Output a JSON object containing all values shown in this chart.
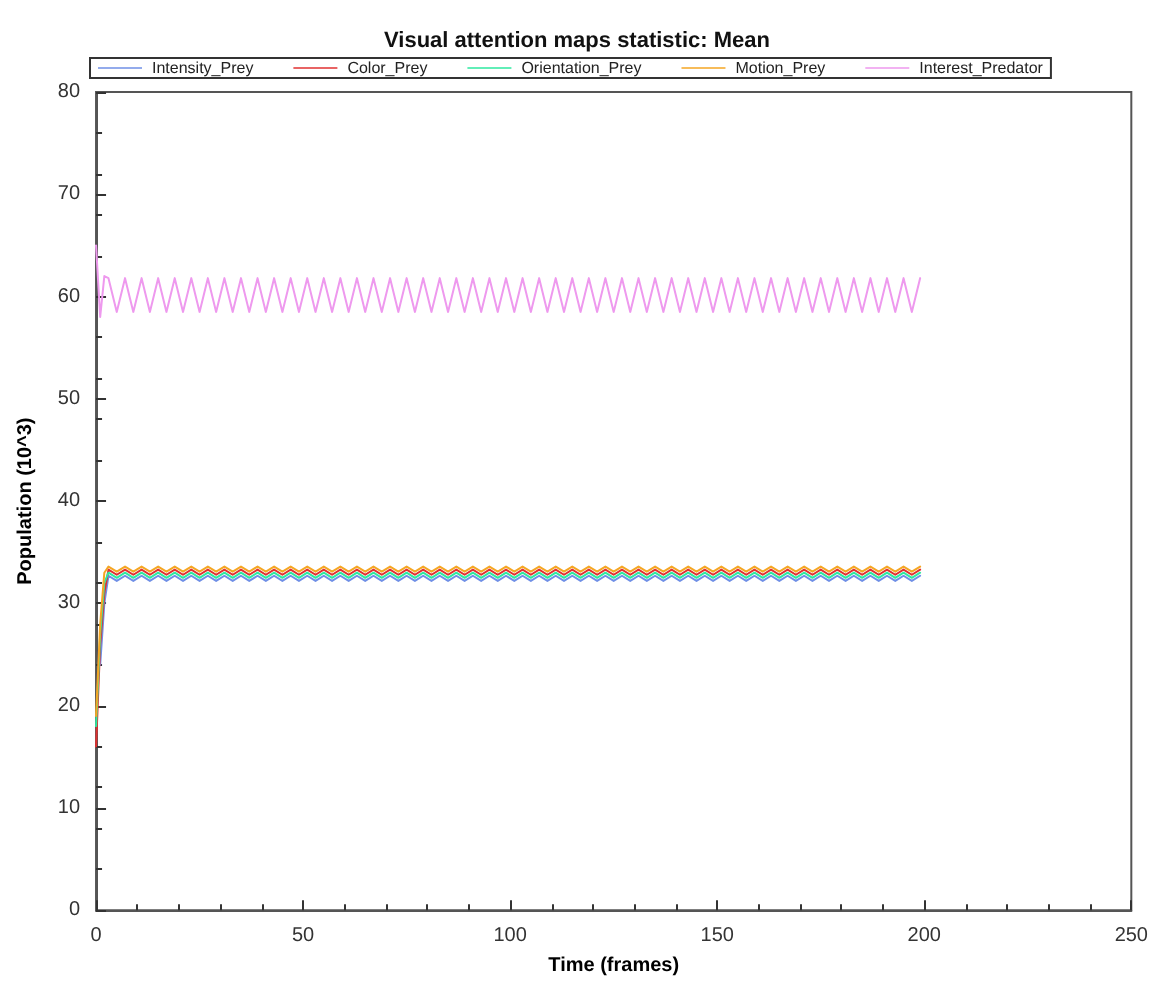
{
  "chart_data": {
    "type": "line",
    "title": "Visual attention maps statistic: Mean",
    "xlabel": "Time (frames)",
    "ylabel": "Population (10^3)",
    "x": [
      0,
      1,
      2,
      3,
      5,
      7,
      9,
      11,
      13,
      15,
      17,
      19,
      21,
      23,
      25,
      27,
      29,
      31,
      33,
      35,
      37,
      39,
      41,
      43,
      45,
      47,
      49,
      51,
      53,
      55,
      57,
      59,
      61,
      63,
      65,
      67,
      69,
      71,
      73,
      75,
      77,
      79,
      81,
      83,
      85,
      87,
      89,
      91,
      93,
      95,
      97,
      99,
      101,
      103,
      105,
      107,
      109,
      111,
      113,
      115,
      117,
      119,
      121,
      123,
      125,
      127,
      129,
      131,
      133,
      135,
      137,
      139,
      141,
      143,
      145,
      147,
      149,
      151,
      153,
      155,
      157,
      159,
      161,
      163,
      165,
      167,
      169,
      171,
      173,
      175,
      177,
      179,
      181,
      183,
      185,
      187,
      189,
      191,
      193,
      195,
      197,
      199
    ],
    "xlim": [
      0,
      250
    ],
    "xticks": [
      0,
      50,
      100,
      150,
      200,
      250
    ],
    "ylim": [
      0,
      80
    ],
    "yticks": [
      0,
      10,
      20,
      30,
      40,
      50,
      60,
      70,
      80
    ],
    "grid": false,
    "legend": "top",
    "marker": "none",
    "line_style": "solid",
    "series": [
      {
        "name": "Intensity_Prey",
        "color": "#6f8fe6",
        "values": [
          null,
          24,
          30,
          32.7,
          32.2,
          32.7,
          32.2,
          32.7,
          32.2,
          32.7,
          32.2,
          32.7,
          32.2,
          32.7,
          32.2,
          32.7,
          32.2,
          32.7,
          32.2,
          32.7,
          32.2,
          32.7,
          32.2,
          32.7,
          32.2,
          32.7,
          32.2,
          32.7,
          32.2,
          32.7,
          32.2,
          32.7,
          32.2,
          32.7,
          32.2,
          32.7,
          32.2,
          32.7,
          32.2,
          32.7,
          32.2,
          32.7,
          32.2,
          32.7,
          32.2,
          32.7,
          32.2,
          32.7,
          32.2,
          32.7,
          32.2,
          32.7,
          32.2,
          32.7,
          32.2,
          32.7,
          32.2,
          32.7,
          32.2,
          32.7,
          32.2,
          32.7,
          32.2,
          32.7,
          32.2,
          32.7,
          32.2,
          32.7,
          32.2,
          32.7,
          32.2,
          32.7,
          32.2,
          32.7,
          32.2,
          32.7,
          32.2,
          32.7,
          32.2,
          32.7,
          32.2,
          32.7,
          32.2,
          32.7,
          32.2,
          32.7,
          32.2,
          32.7,
          32.2,
          32.7,
          32.2,
          32.7,
          32.2,
          32.7,
          32.2,
          32.7,
          32.2,
          32.7,
          32.2,
          32.7,
          32.2,
          32.7
        ]
      },
      {
        "name": "Color_Prey",
        "color": "#e03030",
        "values": [
          16,
          26,
          31,
          33.3,
          32.8,
          33.3,
          32.8,
          33.3,
          32.8,
          33.3,
          32.8,
          33.3,
          32.8,
          33.3,
          32.8,
          33.3,
          32.8,
          33.3,
          32.8,
          33.3,
          32.8,
          33.3,
          32.8,
          33.3,
          32.8,
          33.3,
          32.8,
          33.3,
          32.8,
          33.3,
          32.8,
          33.3,
          32.8,
          33.3,
          32.8,
          33.3,
          32.8,
          33.3,
          32.8,
          33.3,
          32.8,
          33.3,
          32.8,
          33.3,
          32.8,
          33.3,
          32.8,
          33.3,
          32.8,
          33.3,
          32.8,
          33.3,
          32.8,
          33.3,
          32.8,
          33.3,
          32.8,
          33.3,
          32.8,
          33.3,
          32.8,
          33.3,
          32.8,
          33.3,
          32.8,
          33.3,
          32.8,
          33.3,
          32.8,
          33.3,
          32.8,
          33.3,
          32.8,
          33.3,
          32.8,
          33.3,
          32.8,
          33.3,
          32.8,
          33.3,
          32.8,
          33.3,
          32.8,
          33.3,
          32.8,
          33.3,
          32.8,
          33.3,
          32.8,
          33.3,
          32.8,
          33.3,
          32.8,
          33.3,
          32.8,
          33.3,
          32.8,
          33.3,
          32.8,
          33.3,
          32.8,
          33.3
        ]
      },
      {
        "name": "Orientation_Prey",
        "color": "#2ee8a0",
        "values": [
          18,
          27,
          32,
          33,
          32.5,
          33,
          32.5,
          33,
          32.5,
          33,
          32.5,
          33,
          32.5,
          33,
          32.5,
          33,
          32.5,
          33,
          32.5,
          33,
          32.5,
          33,
          32.5,
          33,
          32.5,
          33,
          32.5,
          33,
          32.5,
          33,
          32.5,
          33,
          32.5,
          33,
          32.5,
          33,
          32.5,
          33,
          32.5,
          33,
          32.5,
          33,
          32.5,
          33,
          32.5,
          33,
          32.5,
          33,
          32.5,
          33,
          32.5,
          33,
          32.5,
          33,
          32.5,
          33,
          32.5,
          33,
          32.5,
          33,
          32.5,
          33,
          32.5,
          33,
          32.5,
          33,
          32.5,
          33,
          32.5,
          33,
          32.5,
          33,
          32.5,
          33,
          32.5,
          33,
          32.5,
          33,
          32.5,
          33,
          32.5,
          33,
          32.5,
          33,
          32.5,
          33,
          32.5,
          33,
          32.5,
          33,
          32.5,
          33,
          32.5,
          33,
          32.5,
          33,
          32.5,
          33,
          32.5,
          33,
          32.5,
          33
        ]
      },
      {
        "name": "Motion_Prey",
        "color": "#f5a623",
        "values": [
          19,
          28,
          33,
          33.6,
          33.1,
          33.6,
          33.1,
          33.6,
          33.1,
          33.6,
          33.1,
          33.6,
          33.1,
          33.6,
          33.1,
          33.6,
          33.1,
          33.6,
          33.1,
          33.6,
          33.1,
          33.6,
          33.1,
          33.6,
          33.1,
          33.6,
          33.1,
          33.6,
          33.1,
          33.6,
          33.1,
          33.6,
          33.1,
          33.6,
          33.1,
          33.6,
          33.1,
          33.6,
          33.1,
          33.6,
          33.1,
          33.6,
          33.1,
          33.6,
          33.1,
          33.6,
          33.1,
          33.6,
          33.1,
          33.6,
          33.1,
          33.6,
          33.1,
          33.6,
          33.1,
          33.6,
          33.1,
          33.6,
          33.1,
          33.6,
          33.1,
          33.6,
          33.1,
          33.6,
          33.1,
          33.6,
          33.1,
          33.6,
          33.1,
          33.6,
          33.1,
          33.6,
          33.1,
          33.6,
          33.1,
          33.6,
          33.1,
          33.6,
          33.1,
          33.6,
          33.1,
          33.6,
          33.1,
          33.6,
          33.1,
          33.6,
          33.1,
          33.6,
          33.1,
          33.6,
          33.1,
          33.6,
          33.1,
          33.6,
          33.1,
          33.6,
          33.1,
          33.6,
          33.1,
          33.6,
          33.1,
          33.6
        ]
      },
      {
        "name": "Interest_Predator",
        "color": "#ee99ee",
        "values": [
          65,
          58,
          62,
          61.8,
          58.5,
          61.8,
          58.5,
          61.8,
          58.5,
          61.8,
          58.5,
          61.8,
          58.5,
          61.8,
          58.5,
          61.8,
          58.5,
          61.8,
          58.5,
          61.8,
          58.5,
          61.8,
          58.5,
          61.8,
          58.5,
          61.8,
          58.5,
          61.8,
          58.5,
          61.8,
          58.5,
          61.8,
          58.5,
          61.8,
          58.5,
          61.8,
          58.5,
          61.8,
          58.5,
          61.8,
          58.5,
          61.8,
          58.5,
          61.8,
          58.5,
          61.8,
          58.5,
          61.8,
          58.5,
          61.8,
          58.5,
          61.8,
          58.5,
          61.8,
          58.5,
          61.8,
          58.5,
          61.8,
          58.5,
          61.8,
          58.5,
          61.8,
          58.5,
          61.8,
          58.5,
          61.8,
          58.5,
          61.8,
          58.5,
          61.8,
          58.5,
          61.8,
          58.5,
          61.8,
          58.5,
          61.8,
          58.5,
          61.8,
          58.5,
          61.8,
          58.5,
          61.8,
          58.5,
          61.8,
          58.5,
          61.8,
          58.5,
          61.8,
          58.5,
          61.8,
          58.5,
          61.8,
          58.5,
          61.8,
          58.5,
          61.8,
          58.5,
          61.8,
          58.5,
          61.8,
          58.5,
          61.8
        ]
      }
    ]
  }
}
